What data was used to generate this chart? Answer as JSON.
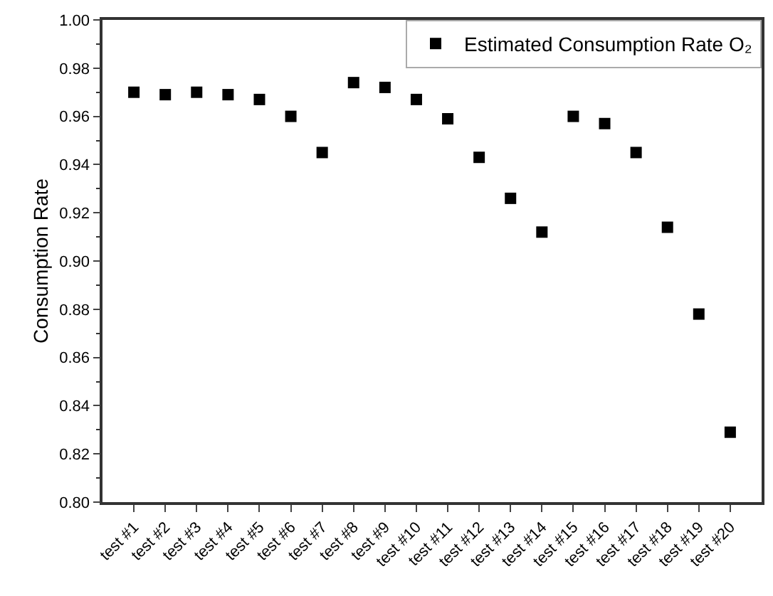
{
  "chart_data": {
    "type": "scatter",
    "ylabel": "Consumption Rate",
    "categories": [
      "test #1",
      "test #2",
      "test #3",
      "test #4",
      "test #5",
      "test #6",
      "test #7",
      "test #8",
      "test #9",
      "test #10",
      "test #11",
      "test #12",
      "test #13",
      "test #14",
      "test #15",
      "test #16",
      "test #17",
      "test #18",
      "test #19",
      "test #20"
    ],
    "series": [
      {
        "name": "Estimated Consumption Rate O₂",
        "color": "#000000",
        "values": [
          0.97,
          0.969,
          0.97,
          0.969,
          0.967,
          0.96,
          0.945,
          0.974,
          0.972,
          0.967,
          0.959,
          0.943,
          0.926,
          0.912,
          0.96,
          0.957,
          0.945,
          0.914,
          0.878,
          0.829
        ]
      }
    ],
    "ylim": [
      0.8,
      1.0
    ],
    "yticks": [
      {
        "value": 0.8,
        "label": "0.80"
      },
      {
        "value": 0.82,
        "label": "0.82"
      },
      {
        "value": 0.84,
        "label": "0.84"
      },
      {
        "value": 0.86,
        "label": "0.86"
      },
      {
        "value": 0.88,
        "label": "0.88"
      },
      {
        "value": 0.9,
        "label": "0.90"
      },
      {
        "value": 0.92,
        "label": "0.92"
      },
      {
        "value": 0.94,
        "label": "0.94"
      },
      {
        "value": 0.96,
        "label": "0.96"
      },
      {
        "value": 0.98,
        "label": "0.98"
      },
      {
        "value": 1.0,
        "label": "1.00"
      }
    ],
    "marker": "square",
    "grid": false,
    "legend": "top right"
  }
}
